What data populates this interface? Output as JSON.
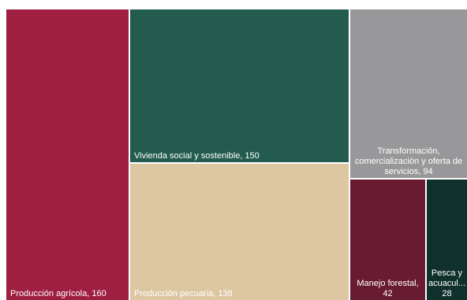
{
  "chart_data": {
    "type": "treemap",
    "title": "",
    "items": [
      {
        "name": "Producción agrícola",
        "value": 160,
        "label": "Producción agrícola, 160",
        "color": "#9E1F3F"
      },
      {
        "name": "Vivienda social y sostenible",
        "value": 150,
        "label": "Vivienda social y sostenible, 150",
        "color": "#235C4E"
      },
      {
        "name": "Producción pecuaria",
        "value": 138,
        "label": "Producción pecuaria, 138",
        "color": "#DCC7A2"
      },
      {
        "name": "Transformación, comercialización y oferta de servicios",
        "value": 94,
        "label_lines": [
          "Transformación,",
          "comercialización y oferta de",
          "servicios, 94"
        ],
        "color": "#98989A"
      },
      {
        "name": "Manejo forestal",
        "value": 42,
        "label_lines": [
          "Manejo forestal,",
          "42"
        ],
        "color": "#691B32"
      },
      {
        "name": "Pesca y acuacultura",
        "value": 28,
        "label_lines": [
          "Pesca y",
          "acuacul...",
          "28"
        ],
        "color": "#10312B"
      }
    ]
  }
}
